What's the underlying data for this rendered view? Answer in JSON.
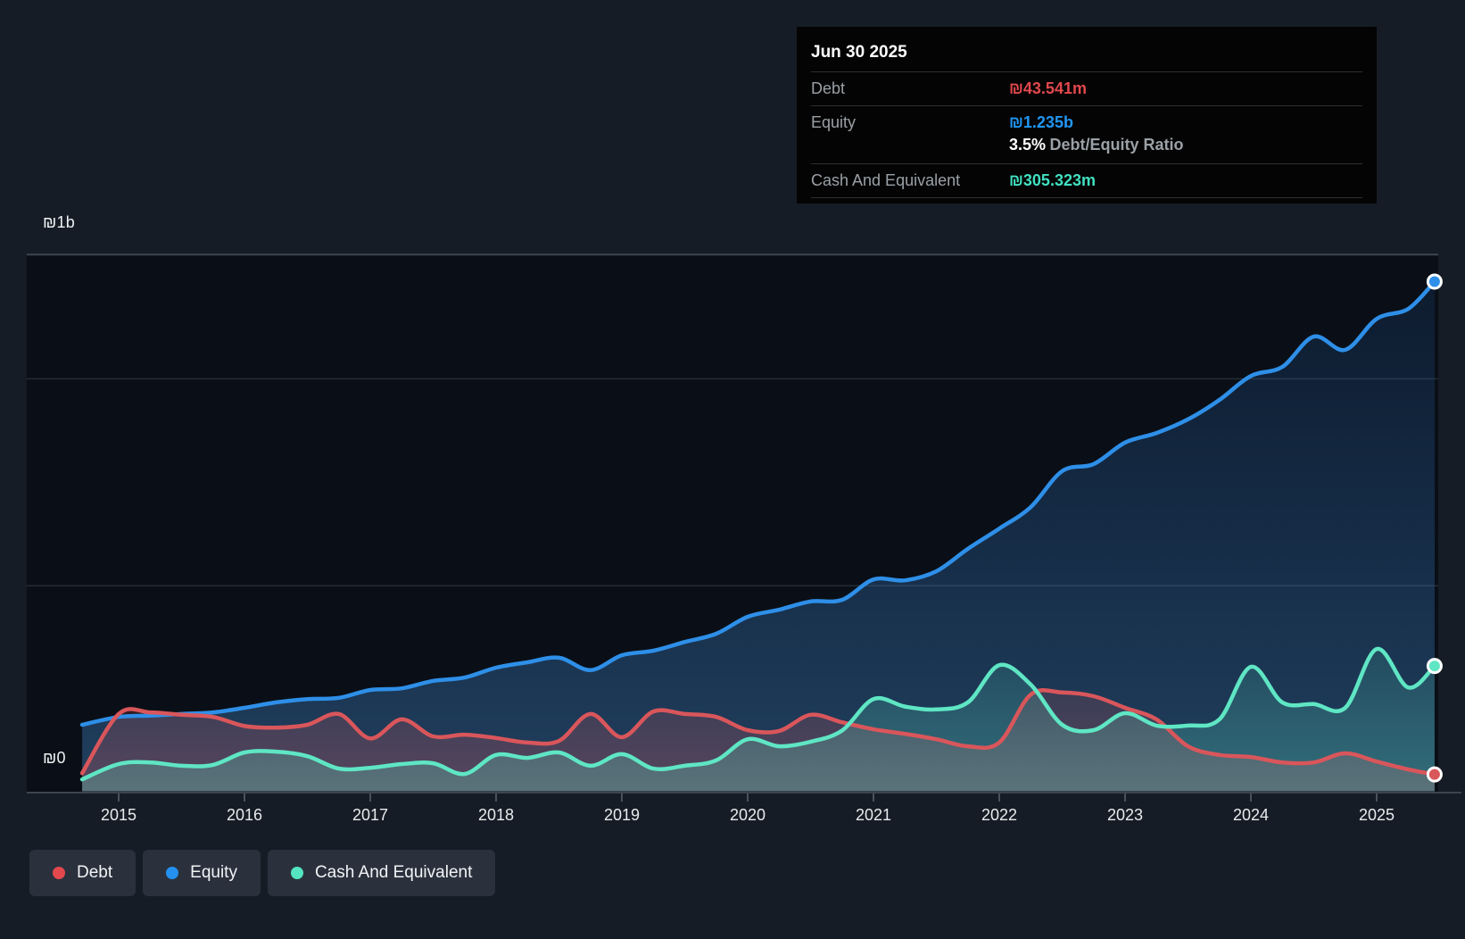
{
  "tooltip": {
    "date": "Jun 30 2025",
    "debt_label": "Debt",
    "debt_value": "₪43.541m",
    "equity_label": "Equity",
    "equity_value": "₪1.235b",
    "ratio_value": "3.5%",
    "ratio_label": "Debt/Equity Ratio",
    "cash_label": "Cash And Equivalent",
    "cash_value": "₪305.323m"
  },
  "y_axis": {
    "top_label": "₪1b",
    "bottom_label": "₪0"
  },
  "x_axis": {
    "years": [
      "2015",
      "2016",
      "2017",
      "2018",
      "2019",
      "2020",
      "2021",
      "2022",
      "2023",
      "2024",
      "2025"
    ]
  },
  "legend": [
    {
      "label": "Debt",
      "color": "#e2484d"
    },
    {
      "label": "Equity",
      "color": "#2490f0"
    },
    {
      "label": "Cash And Equivalent",
      "color": "#54e5c0"
    }
  ],
  "colors": {
    "debt_line": "#d9565b",
    "equity_line": "#2e8fe8",
    "cash_line": "#5fe6c4",
    "debt_value_text": "#e2484d",
    "equity_value_text": "#2196f3",
    "cash_value_text": "#40e0c0",
    "grid_strong": "#3d444f",
    "grid_faint": "#242b34",
    "plot_bg": "#0a0f17",
    "page_bg": "#161c25",
    "tick": "#49515c"
  },
  "chart_data": {
    "type": "area",
    "title": "Debt to Equity History (₪ millions)",
    "unit": "₪m",
    "x_years": [
      2014.71,
      2015,
      2015.25,
      2015.5,
      2015.75,
      2016,
      2016.25,
      2016.5,
      2016.75,
      2017,
      2017.25,
      2017.5,
      2017.75,
      2018,
      2018.25,
      2018.5,
      2018.75,
      2019,
      2019.25,
      2019.5,
      2019.75,
      2020,
      2020.25,
      2020.5,
      2020.75,
      2021,
      2021.25,
      2021.5,
      2021.75,
      2022,
      2022.25,
      2022.5,
      2022.75,
      2023,
      2023.25,
      2023.5,
      2023.75,
      2024,
      2024.25,
      2024.5,
      2024.75,
      2025,
      2025.25,
      2025.46
    ],
    "series": [
      {
        "name": "Equity",
        "color": "#2e8fe8",
        "values": [
          164,
          183,
          186,
          190,
          194,
          205,
          218,
          226,
          229,
          248,
          252,
          270,
          278,
          302,
          315,
          326,
          296,
          332,
          343,
          364,
          384,
          425,
          442,
          462,
          466,
          515,
          513,
          535,
          589,
          638,
          690,
          777,
          794,
          846,
          869,
          902,
          949,
          1007,
          1029,
          1102,
          1070,
          1145,
          1169,
          1235
        ]
      },
      {
        "name": "Debt",
        "color": "#d9565b",
        "values": [
          47,
          190,
          194,
          188,
          183,
          161,
          157,
          164,
          190,
          131,
          177,
          136,
          140,
          132,
          121,
          125,
          190,
          134,
          196,
          190,
          183,
          151,
          149,
          188,
          170,
          153,
          142,
          129,
          112,
          121,
          237,
          242,
          233,
          205,
          177,
          112,
          91,
          86,
          73,
          73,
          95,
          75,
          56,
          44
        ]
      },
      {
        "name": "Cash And Equivalent",
        "color": "#5fe6c4",
        "values": [
          32,
          69,
          73,
          65,
          67,
          97,
          99,
          88,
          58,
          60,
          69,
          71,
          45,
          91,
          84,
          97,
          65,
          93,
          58,
          65,
          78,
          129,
          112,
          123,
          150,
          226,
          208,
          201,
          218,
          308,
          261,
          164,
          151,
          192,
          162,
          162,
          177,
          304,
          218,
          214,
          205,
          347,
          254,
          306
        ]
      }
    ],
    "last_values": {
      "Debt": 43.541,
      "Equity": 1235,
      "Cash And Equivalent": 305.323
    },
    "ylim": [
      0,
      1300
    ],
    "y_gridlines_m": [
      0,
      500,
      1000,
      1300
    ],
    "grid": true,
    "legend_position": "bottom-left"
  }
}
